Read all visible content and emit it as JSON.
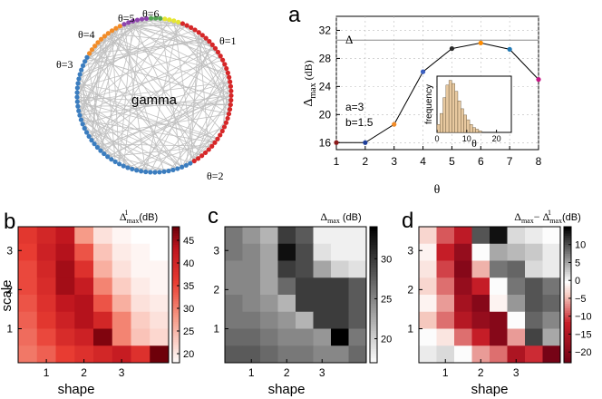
{
  "chart_data": [
    {
      "panel": "network",
      "type": "other",
      "center_label": "gamma",
      "theta_labels": [
        "θ=1",
        "θ=2",
        "θ=3",
        "θ=4",
        "θ=5",
        "θ=6"
      ],
      "group_colors": [
        "#d62728",
        "#3b7dbf",
        "#f28c28",
        "#8e44ad",
        "#52a552",
        "#e6e632"
      ],
      "group_node_counts": [
        38,
        44,
        10,
        6,
        3,
        4
      ],
      "edge_color": "#c0c0c0"
    },
    {
      "panel": "a",
      "type": "line",
      "ylabel_main": "Δ",
      "ylabel_sub": "max",
      "ylabel_unit": "(dB)",
      "xlabel": "θ",
      "x": [
        1,
        2,
        3,
        4,
        5,
        6,
        7,
        8
      ],
      "values": [
        16,
        16,
        18.6,
        26.1,
        29.4,
        30.2,
        29.3,
        25
      ],
      "point_colors": [
        "#8b1a1a",
        "#1f3f9a",
        "#f28c28",
        "#3b5fc0",
        "#2a2a2a",
        "#ff8c00",
        "#1f78b4",
        "#c71585"
      ],
      "xlim": [
        1,
        8
      ],
      "ylim": [
        15,
        34
      ],
      "xticks": [
        1,
        2,
        3,
        4,
        5,
        6,
        7,
        8
      ],
      "yticks": [
        16,
        20,
        24,
        28,
        32
      ],
      "hline_value": 30.6,
      "hline_label": "Δ",
      "annotation_a": "a=3",
      "annotation_b": "b=1.5",
      "inset": {
        "type": "bar",
        "ylabel": "frequency",
        "xlabel": "θ",
        "xticks": [
          0,
          10,
          20
        ],
        "xlim": [
          0,
          25
        ],
        "bins": [
          0.5,
          1.5,
          2.5,
          3.5,
          4.5,
          5.5,
          6.5,
          7.5,
          8.5,
          9.5,
          10.5,
          11.5,
          12.5,
          13.5,
          14.5
        ],
        "counts": [
          5,
          12,
          22,
          30,
          33,
          31,
          26,
          20,
          15,
          11,
          8,
          5,
          3,
          2,
          1
        ],
        "bar_color": "#e8c9a0"
      }
    },
    {
      "panel": "b",
      "type": "heatmap",
      "title_main": "Δ",
      "title_sub": "max",
      "title_sup": "1",
      "title_unit": "(dB)",
      "xlabel": "shape",
      "ylabel": "scale",
      "xticks": [
        "1",
        "2",
        "3"
      ],
      "yticks": [
        "1",
        "2",
        "3"
      ],
      "colorbar_ticks": [
        20,
        25,
        30,
        35,
        40,
        45
      ],
      "vmin": 18,
      "vmax": 48,
      "colormap": "white-red",
      "rows": [
        [
          37,
          40,
          43,
          28,
          21,
          19,
          18,
          18
        ],
        [
          36,
          41,
          44,
          34,
          24,
          20,
          19,
          18
        ],
        [
          35,
          40,
          45,
          38,
          26,
          21,
          19,
          19
        ],
        [
          35,
          39,
          45,
          42,
          30,
          23,
          20,
          19
        ],
        [
          34,
          38,
          43,
          44,
          34,
          26,
          21,
          20
        ],
        [
          33,
          37,
          41,
          44,
          40,
          30,
          23,
          21
        ],
        [
          32,
          35,
          39,
          41,
          47,
          30,
          24,
          22
        ],
        [
          31,
          33,
          36,
          38,
          40,
          42,
          38,
          48
        ]
      ]
    },
    {
      "panel": "c",
      "type": "heatmap",
      "title_main": "Δ",
      "title_sub": "max",
      "title_unit": "(dB)",
      "xlabel": "shape",
      "xticks": [
        "1",
        "2",
        "3"
      ],
      "yticks": [
        "1",
        "2",
        "3"
      ],
      "colorbar_ticks": [
        20,
        25,
        30
      ],
      "vmin": 17,
      "vmax": 34,
      "colormap": "white-black",
      "rows": [
        [
          26,
          24,
          22,
          30,
          28,
          18,
          18,
          18
        ],
        [
          26,
          25,
          23,
          33,
          29,
          19,
          18,
          18
        ],
        [
          25,
          25,
          23,
          30,
          29,
          23,
          20,
          19
        ],
        [
          25,
          25,
          23,
          27,
          30,
          30,
          30,
          28
        ],
        [
          26,
          25,
          24,
          22,
          30,
          30,
          30,
          28
        ],
        [
          26,
          26,
          25,
          24,
          22,
          30,
          30,
          28
        ],
        [
          27,
          27,
          26,
          25,
          25,
          24,
          34,
          26
        ],
        [
          28,
          28,
          27,
          26,
          26,
          25,
          25,
          27
        ]
      ]
    },
    {
      "panel": "d",
      "type": "heatmap",
      "title_main": "Δ",
      "title_sub": "max",
      "title_minus": "− Δ",
      "title_sup": "1",
      "title_unit": "(dB)",
      "xlabel": "shape",
      "xticks": [
        "1",
        "2",
        "3"
      ],
      "yticks": [
        "1",
        "2",
        "3"
      ],
      "colorbar_ticks": [
        10,
        5,
        0,
        -5,
        -10,
        -15,
        -20
      ],
      "vmin": -23,
      "vmax": 15,
      "colormap": "diverging-red-white-black",
      "rows": [
        [
          -3,
          -9,
          -13,
          10,
          14,
          2,
          1,
          0
        ],
        [
          -1,
          -12,
          -18,
          0,
          5,
          4,
          3,
          1
        ],
        [
          -2,
          -10,
          -20,
          -5,
          8,
          9,
          2,
          1
        ],
        [
          -3,
          -8,
          -18,
          -12,
          0,
          8,
          10,
          8
        ],
        [
          -1,
          -6,
          -16,
          -20,
          -1,
          6,
          10,
          9
        ],
        [
          -4,
          -8,
          -14,
          -18,
          -20,
          0,
          9,
          7
        ],
        [
          0,
          -2,
          -8,
          -12,
          -20,
          -6,
          11,
          5
        ],
        [
          1,
          2,
          0,
          -6,
          -8,
          -15,
          -11,
          -22
        ]
      ]
    }
  ]
}
